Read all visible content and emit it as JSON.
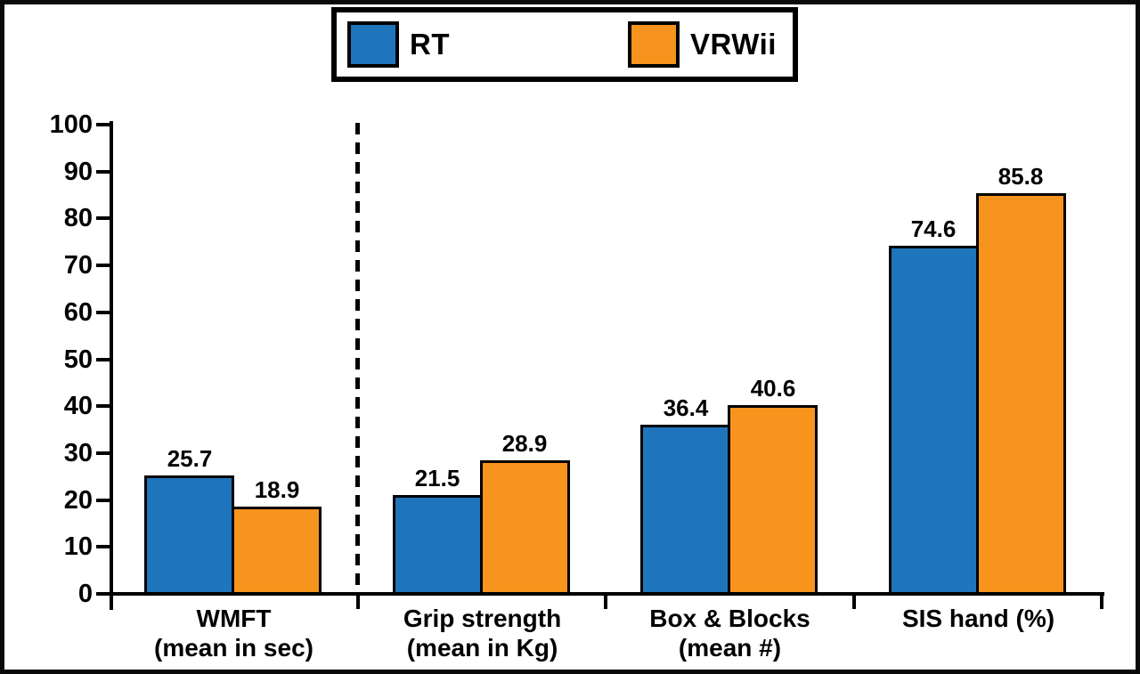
{
  "legend": {
    "items": [
      {
        "label": "RT",
        "color": "#1F75BC"
      },
      {
        "label": "VRWii",
        "color": "#F7941E"
      }
    ]
  },
  "chart_data": {
    "type": "bar",
    "title": "",
    "categories": [
      {
        "lines": [
          "WMFT",
          "(mean in sec)"
        ]
      },
      {
        "lines": [
          "Grip strength",
          "(mean in Kg)"
        ]
      },
      {
        "lines": [
          "Box & Blocks",
          "(mean #)"
        ]
      },
      {
        "lines": [
          "SIS hand (%)"
        ]
      }
    ],
    "series": [
      {
        "name": "RT",
        "color": "#1F75BC",
        "values": [
          25.7,
          21.5,
          36.4,
          74.6
        ]
      },
      {
        "name": "VRWii",
        "color": "#F7941E",
        "values": [
          18.9,
          28.9,
          40.6,
          85.8
        ]
      }
    ],
    "ylim": [
      0,
      100
    ],
    "yticks": [
      0,
      10,
      20,
      30,
      40,
      50,
      60,
      70,
      80,
      90,
      100
    ],
    "grid": false,
    "legend_position": "top-center",
    "separator_after_category_index": 0,
    "separator_style": "dashed",
    "value_label_decimals": 1,
    "bar_edge_color": "#000000",
    "axis_color": "#000000"
  }
}
